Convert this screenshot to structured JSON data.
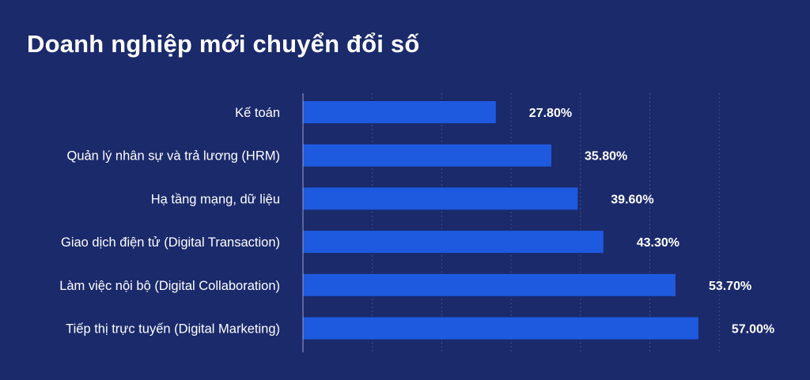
{
  "title": "Doanh nghiệp mới chuyển đổi số",
  "colors": {
    "background": "#1b2a6b",
    "bar": "#1e5ae0",
    "text": "#ffffff"
  },
  "chart_data": {
    "type": "bar",
    "orientation": "horizontal",
    "title": "Doanh nghiệp mới chuyển đổi số",
    "categories": [
      "Kế toán",
      "Quản lý nhân sự và trả lương (HRM)",
      "Hạ tầng mạng, dữ liệu",
      "Giao dịch điện tử (Digital Transaction)",
      "Làm việc nội bộ (Digital Collaboration)",
      "Tiếp thị trực tuyến (Digital Marketing)"
    ],
    "values": [
      27.8,
      35.8,
      39.6,
      43.3,
      53.7,
      57.0
    ],
    "value_labels": [
      "27.80%",
      "35.80%",
      "39.60%",
      "43.30%",
      "53.70%",
      "57.00%"
    ],
    "xlim": [
      0,
      60
    ],
    "grid": true,
    "legend": "none"
  }
}
